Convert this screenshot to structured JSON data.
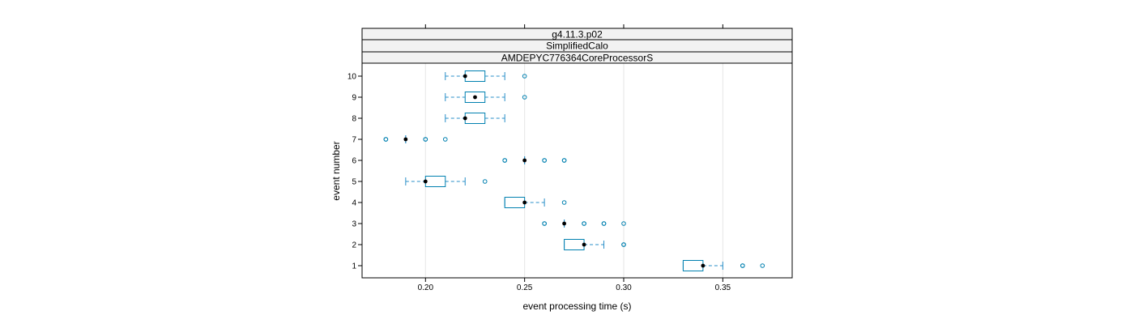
{
  "chart_data": {
    "type": "boxplot",
    "strips": [
      "g4.11.3.p02",
      "SimplifiedCalo",
      "AMDEPYC776364CoreProcessorS"
    ],
    "xlabel": "event processing time (s)",
    "ylabel": "event number",
    "xlim": [
      0.168,
      0.385
    ],
    "x_ticks": [
      "0.20",
      "0.25",
      "0.30",
      "0.35"
    ],
    "x_tick_values": [
      0.2,
      0.25,
      0.3,
      0.35
    ],
    "grid": "vertical",
    "colors": {
      "box": "#0080b0",
      "whisker": "#2a8fc8",
      "median": "#000000",
      "outlier": "#0080b0"
    },
    "categories": [
      "1",
      "2",
      "3",
      "4",
      "5",
      "6",
      "7",
      "8",
      "9",
      "10"
    ],
    "boxes": [
      {
        "event": "1",
        "q1": 0.33,
        "median": 0.34,
        "q3": 0.34,
        "wlo": 0.33,
        "whi": 0.35,
        "outliers": [
          0.36,
          0.36,
          0.37
        ]
      },
      {
        "event": "2",
        "q1": 0.27,
        "median": 0.28,
        "q3": 0.28,
        "wlo": 0.27,
        "whi": 0.29,
        "outliers": [
          0.3,
          0.3
        ]
      },
      {
        "event": "3",
        "q1": 0.27,
        "median": 0.27,
        "q3": 0.27,
        "wlo": 0.27,
        "whi": 0.27,
        "outliers": [
          0.26,
          0.26,
          0.28,
          0.28,
          0.29,
          0.29,
          0.3
        ]
      },
      {
        "event": "4",
        "q1": 0.24,
        "median": 0.25,
        "q3": 0.25,
        "wlo": 0.24,
        "whi": 0.26,
        "outliers": [
          0.27
        ]
      },
      {
        "event": "5",
        "q1": 0.2,
        "median": 0.2,
        "q3": 0.21,
        "wlo": 0.19,
        "whi": 0.22,
        "outliers": [
          0.23
        ]
      },
      {
        "event": "6",
        "q1": 0.25,
        "median": 0.25,
        "q3": 0.25,
        "wlo": 0.25,
        "whi": 0.25,
        "outliers": [
          0.24,
          0.24,
          0.26,
          0.26,
          0.27,
          0.27
        ]
      },
      {
        "event": "7",
        "q1": 0.19,
        "median": 0.19,
        "q3": 0.19,
        "wlo": 0.19,
        "whi": 0.19,
        "outliers": [
          0.18,
          0.18,
          0.2,
          0.2,
          0.21
        ]
      },
      {
        "event": "8",
        "q1": 0.22,
        "median": 0.22,
        "q3": 0.23,
        "wlo": 0.21,
        "whi": 0.24,
        "outliers": []
      },
      {
        "event": "9",
        "q1": 0.22,
        "median": 0.225,
        "q3": 0.23,
        "wlo": 0.21,
        "whi": 0.24,
        "outliers": [
          0.25
        ]
      },
      {
        "event": "10",
        "q1": 0.22,
        "median": 0.22,
        "q3": 0.23,
        "wlo": 0.21,
        "whi": 0.24,
        "outliers": [
          0.25
        ]
      }
    ]
  }
}
